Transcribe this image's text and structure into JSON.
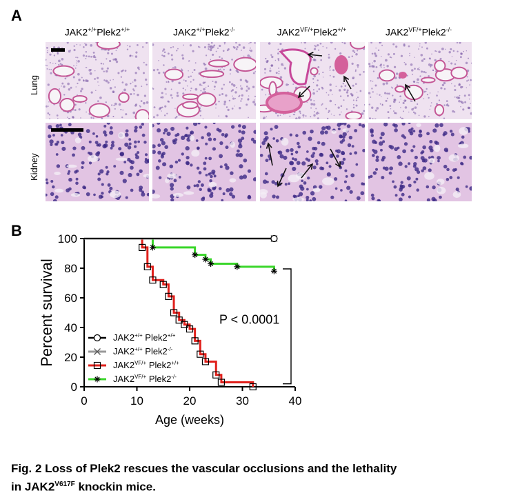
{
  "panel_a": {
    "letter": "A",
    "columns": [
      {
        "base": "JAK2",
        "sup1": "+/+",
        "mid": "Plek2",
        "sup2": "+/+"
      },
      {
        "base": "JAK2",
        "sup1": "+/+",
        "mid": "Plek2",
        "sup2": "-/-"
      },
      {
        "base": "JAK2",
        "sup1": "VF/+",
        "mid": "Plek2",
        "sup2": "+/+"
      },
      {
        "base": "JAK2",
        "sup1": "VF/+",
        "mid": "Plek2",
        "sup2": "-/-"
      }
    ],
    "rows": [
      "Lung",
      "Kidney"
    ],
    "colors": {
      "tissue_bg": "#e9d8ea",
      "eosin": "#d4609b",
      "nuclei": "#3d2a86"
    }
  },
  "panel_b": {
    "letter": "B",
    "p_value": "P < 0.0001"
  },
  "chart_data": {
    "type": "line",
    "subtype": "kaplan-meier",
    "xlabel": "Age (weeks)",
    "ylabel": "Percent survival",
    "xlim": [
      0,
      40
    ],
    "ylim": [
      0,
      100
    ],
    "xticks": [
      0,
      10,
      20,
      30,
      40
    ],
    "yticks": [
      0,
      20,
      40,
      60,
      80,
      100
    ],
    "legend_position": "bottom-left",
    "series": [
      {
        "legend_base": "JAK2",
        "legend_sup1": "+/+",
        "legend_mid": " Plek2",
        "legend_sup2": "+/+",
        "color": "#000000",
        "marker": "circle",
        "steps": [
          [
            0,
            100
          ],
          [
            36,
            100
          ]
        ],
        "censor": [
          [
            36,
            100
          ]
        ]
      },
      {
        "legend_base": "JAK2",
        "legend_sup1": "+/+",
        "legend_mid": " Plek2",
        "legend_sup2": "-/-",
        "color": "#999999",
        "marker": "x",
        "steps": [
          [
            0,
            100
          ],
          [
            36,
            100
          ]
        ],
        "censor": [
          [
            36,
            100
          ]
        ]
      },
      {
        "legend_base": "JAK2",
        "legend_sup1": "VF/+",
        "legend_mid": " Plek2",
        "legend_sup2": "+/+",
        "color": "#e0201b",
        "marker": "square",
        "steps": [
          [
            0,
            100
          ],
          [
            11,
            100
          ],
          [
            11,
            94
          ],
          [
            12,
            94
          ],
          [
            12,
            81
          ],
          [
            13,
            81
          ],
          [
            13,
            72
          ],
          [
            15,
            72
          ],
          [
            15,
            69
          ],
          [
            16,
            69
          ],
          [
            16,
            61
          ],
          [
            17,
            61
          ],
          [
            17,
            50
          ],
          [
            18,
            50
          ],
          [
            18,
            45
          ],
          [
            19,
            45
          ],
          [
            19,
            42
          ],
          [
            20,
            42
          ],
          [
            20,
            39
          ],
          [
            21,
            39
          ],
          [
            21,
            31
          ],
          [
            22,
            31
          ],
          [
            22,
            22
          ],
          [
            23,
            22
          ],
          [
            23,
            17
          ],
          [
            25,
            17
          ],
          [
            25,
            8
          ],
          [
            26,
            8
          ],
          [
            26,
            3
          ],
          [
            32,
            3
          ],
          [
            32,
            0
          ]
        ],
        "censor": [
          [
            11,
            94
          ],
          [
            12,
            81
          ],
          [
            13,
            72
          ],
          [
            15,
            69
          ],
          [
            16,
            61
          ],
          [
            17,
            50
          ],
          [
            18,
            45
          ],
          [
            19,
            42
          ],
          [
            20,
            39
          ],
          [
            21,
            31
          ],
          [
            22,
            22
          ],
          [
            23,
            17
          ],
          [
            25,
            8
          ],
          [
            26,
            3
          ],
          [
            32,
            0
          ]
        ]
      },
      {
        "legend_base": "JAK2",
        "legend_sup1": "VF/+",
        "legend_mid": "  Plek2",
        "legend_sup2": "-/-",
        "color": "#39d629",
        "marker": "star",
        "steps": [
          [
            0,
            100
          ],
          [
            13,
            100
          ],
          [
            13,
            94
          ],
          [
            21,
            94
          ],
          [
            21,
            89
          ],
          [
            23,
            89
          ],
          [
            23,
            86
          ],
          [
            24,
            86
          ],
          [
            24,
            83
          ],
          [
            29,
            83
          ],
          [
            29,
            81
          ],
          [
            36,
            81
          ],
          [
            36,
            78
          ]
        ],
        "censor": [
          [
            13,
            94
          ],
          [
            21,
            89
          ],
          [
            23,
            86
          ],
          [
            24,
            83
          ],
          [
            29,
            81
          ],
          [
            36,
            78
          ]
        ]
      }
    ]
  },
  "caption": {
    "line1": "Fig. 2 Loss of Plek2 rescues the vascular occlusions and the lethality",
    "line2_pre": "in JAK2",
    "line2_sup": "V617F",
    "line2_post": " knockin mice."
  }
}
